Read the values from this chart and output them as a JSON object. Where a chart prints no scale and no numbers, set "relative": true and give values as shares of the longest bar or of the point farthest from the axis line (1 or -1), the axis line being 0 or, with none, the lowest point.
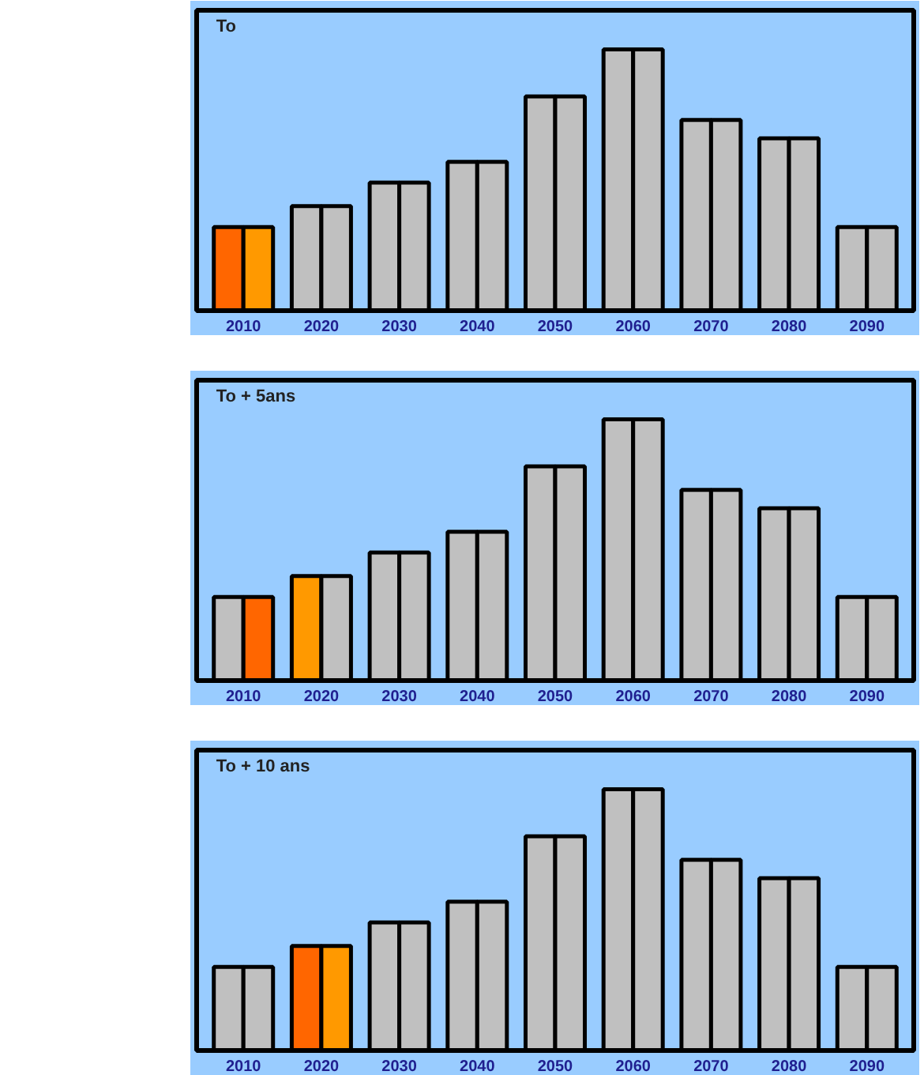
{
  "chart_data": [
    {
      "type": "bar",
      "title": "To",
      "relative": true,
      "categories": [
        "2010",
        "2020",
        "2030",
        "2040",
        "2050",
        "2060",
        "2070",
        "2080",
        "2090"
      ],
      "series": [
        {
          "colors": [
            "#ff6600",
            "#c0c0c0",
            "#c0c0c0",
            "#c0c0c0",
            "#c0c0c0",
            "#c0c0c0",
            "#c0c0c0",
            "#c0c0c0",
            "#c0c0c0"
          ],
          "values": [
            0.32,
            0.4,
            0.49,
            0.57,
            0.82,
            1,
            0.73,
            0.66,
            0.32
          ]
        },
        {
          "colors": [
            "#ff9900",
            "#c0c0c0",
            "#c0c0c0",
            "#c0c0c0",
            "#c0c0c0",
            "#c0c0c0",
            "#c0c0c0",
            "#c0c0c0",
            "#c0c0c0"
          ],
          "values": [
            0.32,
            0.4,
            0.49,
            0.57,
            0.82,
            1,
            0.73,
            0.66,
            0.32
          ]
        }
      ]
    },
    {
      "type": "bar",
      "title": "To + 5ans",
      "relative": true,
      "categories": [
        "2010",
        "2020",
        "2030",
        "2040",
        "2050",
        "2060",
        "2070",
        "2080",
        "2090"
      ],
      "series": [
        {
          "colors": [
            "#c0c0c0",
            "#ff9900",
            "#c0c0c0",
            "#c0c0c0",
            "#c0c0c0",
            "#c0c0c0",
            "#c0c0c0",
            "#c0c0c0",
            "#c0c0c0"
          ],
          "values": [
            0.32,
            0.4,
            0.49,
            0.57,
            0.82,
            1,
            0.73,
            0.66,
            0.32
          ]
        },
        {
          "colors": [
            "#ff6600",
            "#c0c0c0",
            "#c0c0c0",
            "#c0c0c0",
            "#c0c0c0",
            "#c0c0c0",
            "#c0c0c0",
            "#c0c0c0",
            "#c0c0c0"
          ],
          "values": [
            0.32,
            0.4,
            0.49,
            0.57,
            0.82,
            1,
            0.73,
            0.66,
            0.32
          ]
        }
      ]
    },
    {
      "type": "bar",
      "title": "To + 10 ans",
      "relative": true,
      "categories": [
        "2010",
        "2020",
        "2030",
        "2040",
        "2050",
        "2060",
        "2070",
        "2080",
        "2090"
      ],
      "series": [
        {
          "colors": [
            "#c0c0c0",
            "#ff6600",
            "#c0c0c0",
            "#c0c0c0",
            "#c0c0c0",
            "#c0c0c0",
            "#c0c0c0",
            "#c0c0c0",
            "#c0c0c0"
          ],
          "values": [
            0.32,
            0.4,
            0.49,
            0.57,
            0.82,
            1,
            0.73,
            0.66,
            0.32
          ]
        },
        {
          "colors": [
            "#c0c0c0",
            "#ff9900",
            "#c0c0c0",
            "#c0c0c0",
            "#c0c0c0",
            "#c0c0c0",
            "#c0c0c0",
            "#c0c0c0",
            "#c0c0c0"
          ],
          "values": [
            0.32,
            0.4,
            0.49,
            0.57,
            0.82,
            1,
            0.73,
            0.66,
            0.32
          ]
        }
      ]
    }
  ]
}
